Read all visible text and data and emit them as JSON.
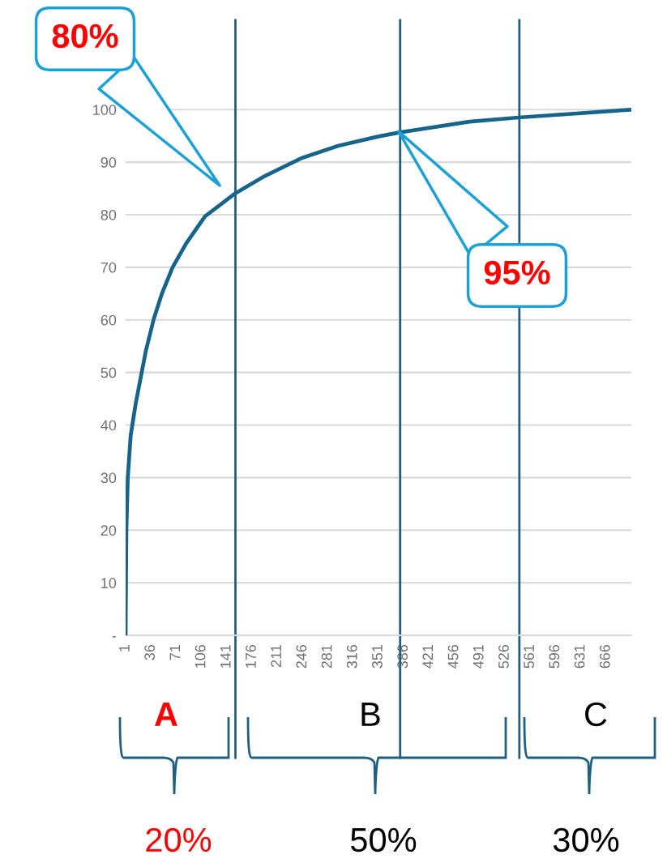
{
  "chart_data": {
    "type": "line",
    "x": [
      1,
      2,
      4,
      8,
      15,
      29,
      40,
      51,
      66,
      85,
      111,
      153,
      194,
      245,
      295,
      351,
      382,
      477,
      545,
      701
    ],
    "series": [
      {
        "color": "#17648a",
        "values": [
          0,
          20,
          30,
          38,
          44.1,
          54.1,
          60.2,
          64.9,
          70,
          74.6,
          79.7,
          84.1,
          87.4,
          90.8,
          93.1,
          94.9,
          95.7,
          97.7,
          98.5,
          100
        ]
      }
    ],
    "xlim": [
      1,
      701
    ],
    "xticks": [
      1,
      36,
      71,
      106,
      141,
      176,
      211,
      246,
      281,
      316,
      351,
      386,
      421,
      456,
      491,
      526,
      561,
      596,
      631,
      666
    ],
    "ylim": [
      0,
      117
    ],
    "yticks": [
      {
        "value": 0,
        "label": "-"
      },
      10,
      20,
      30,
      40,
      50,
      60,
      70,
      80,
      90,
      100
    ],
    "grid": "y",
    "marker": "none",
    "line_style": "solid",
    "ref_lines": [
      {
        "axis": "x",
        "value": 153,
        "color": "#1f5f80"
      },
      {
        "axis": "x",
        "value": 381,
        "color": "#1f5f80"
      },
      {
        "axis": "x",
        "value": 546,
        "color": "#1f5f80"
      }
    ],
    "annotations": [
      "80%",
      "95%",
      "A",
      "B",
      "C",
      "20%",
      "50%",
      "30%"
    ]
  }
}
